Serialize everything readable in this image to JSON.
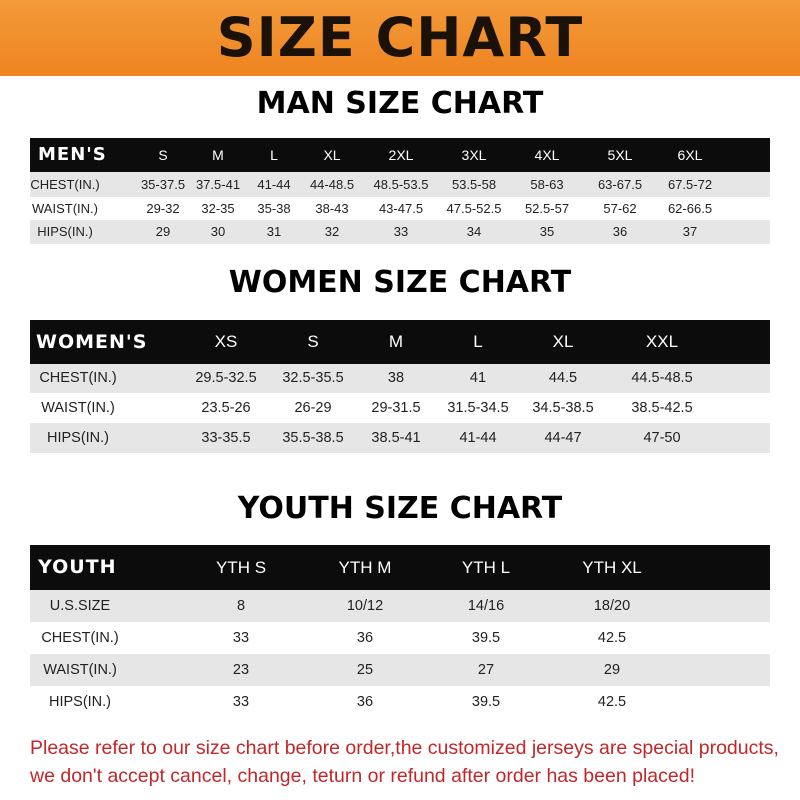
{
  "banner_title": "SIZE CHART",
  "colors": {
    "banner": "#f08a24",
    "header_row": "#0c0c0c",
    "stripe": "#e6e6e6",
    "notice": "#c0282a"
  },
  "men": {
    "title": "MAN SIZE CHART",
    "header": [
      "MEN'S",
      "S",
      "M",
      "L",
      "XL",
      "2XL",
      "3XL",
      "4XL",
      "5XL",
      "6XL"
    ],
    "rows": [
      [
        "CHEST(IN.)",
        "35-37.5",
        "37.5-41",
        "41-44",
        "44-48.5",
        "48.5-53.5",
        "53.5-58",
        "58-63",
        "63-67.5",
        "67.5-72"
      ],
      [
        "WAIST(IN.)",
        "29-32",
        "32-35",
        "35-38",
        "38-43",
        "43-47.5",
        "47.5-52.5",
        "52.5-57",
        "57-62",
        "62-66.5"
      ],
      [
        "HIPS(IN.)",
        "29",
        "30",
        "31",
        "32",
        "33",
        "34",
        "35",
        "36",
        "37"
      ]
    ]
  },
  "women": {
    "title": "WOMEN SIZE CHART",
    "header": [
      "WOMEN'S",
      "XS",
      "S",
      "M",
      "L",
      "XL",
      "XXL"
    ],
    "rows": [
      [
        "CHEST(IN.)",
        "29.5-32.5",
        "32.5-35.5",
        "38",
        "41",
        "44.5",
        "44.5-48.5"
      ],
      [
        "WAIST(IN.)",
        "23.5-26",
        "26-29",
        "29-31.5",
        "31.5-34.5",
        "34.5-38.5",
        "38.5-42.5"
      ],
      [
        "HIPS(IN.)",
        "33-35.5",
        "35.5-38.5",
        "38.5-41",
        "41-44",
        "44-47",
        "47-50"
      ]
    ]
  },
  "youth": {
    "title": "YOUTH SIZE CHART",
    "header": [
      "YOUTH",
      "YTH S",
      "YTH M",
      "YTH L",
      "YTH XL"
    ],
    "rows": [
      [
        "U.S.SIZE",
        "8",
        "10/12",
        "14/16",
        "18/20"
      ],
      [
        "CHEST(IN.)",
        "33",
        "36",
        "39.5",
        "42.5"
      ],
      [
        "WAIST(IN.)",
        "23",
        "25",
        "27",
        "29"
      ],
      [
        "HIPS(IN.)",
        "33",
        "36",
        "39.5",
        "42.5"
      ]
    ]
  },
  "notice": [
    "Please refer to our size chart before order,the customized jerseys are special products,",
    "we don't accept cancel, change, teturn or refund after order has been placed!"
  ]
}
